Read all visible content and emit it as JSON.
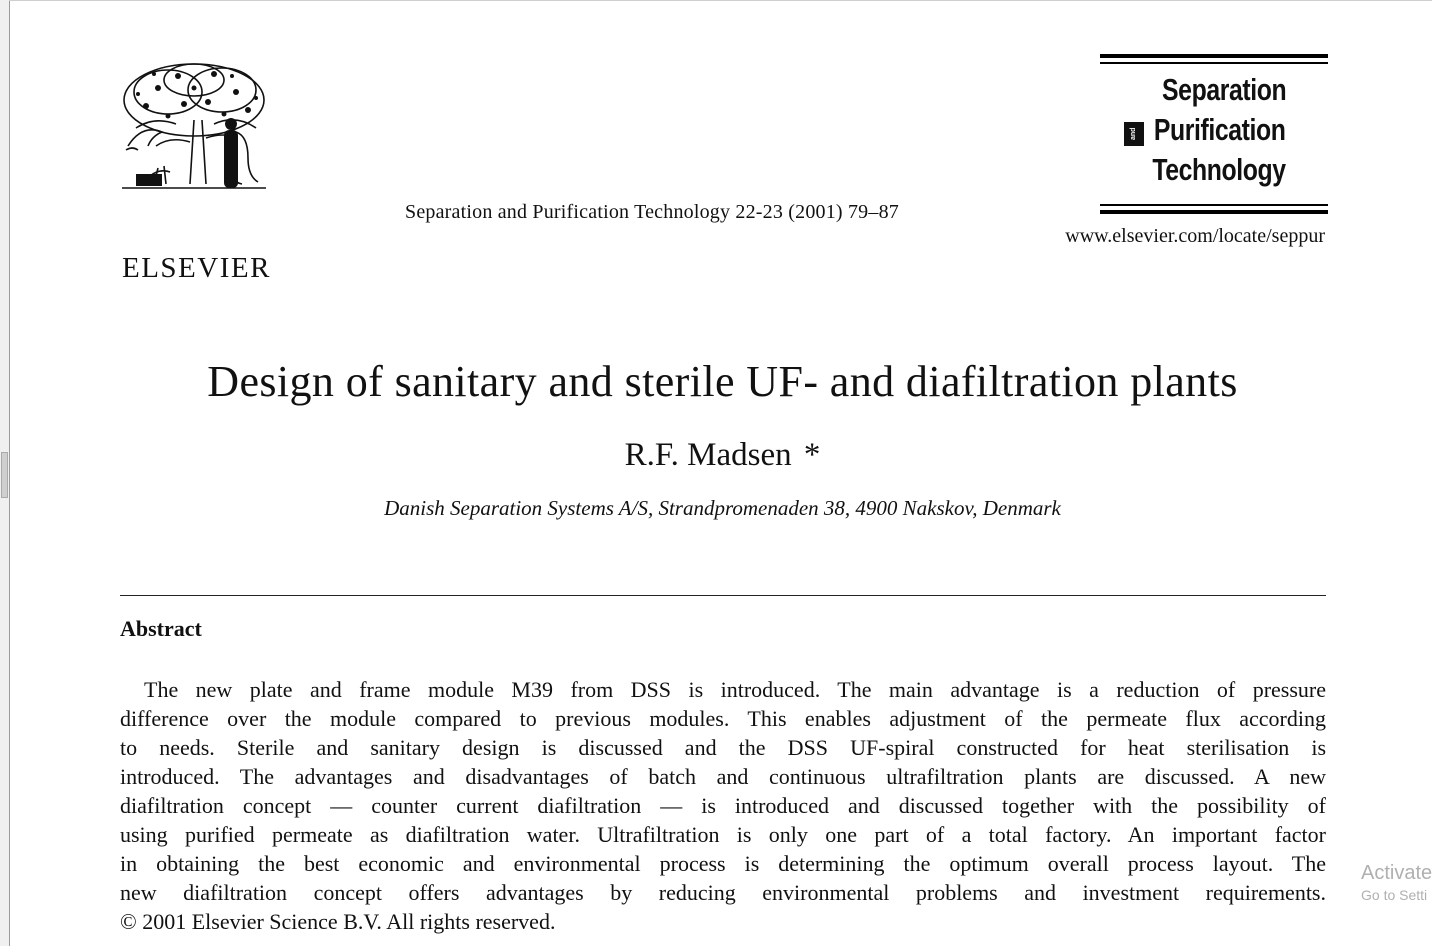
{
  "publisher": {
    "logo_text": "ELSEVIER"
  },
  "citation": "Separation and Purification Technology 22-23 (2001) 79–87",
  "journal_logo": {
    "line1": "Separation",
    "and_mark": "and",
    "line2": "Purification",
    "line3": "Technology"
  },
  "url": "www.elsevier.com/locate/seppur",
  "title": "Design of sanitary and sterile UF- and diafiltration plants",
  "author": {
    "name": "R.F. Madsen",
    "mark": "*"
  },
  "affiliation": "Danish Separation Systems A/S, Strandpromenaden 38, 4900 Nakskov, Denmark",
  "abstract": {
    "heading": "Abstract",
    "lines": [
      "The new plate and frame module M39 from DSS is introduced. The main advantage is a reduction of pressure",
      "difference over the module compared to previous modules. This enables adjustment of the permeate flux according",
      "to needs. Sterile and sanitary design is discussed and the DSS UF-spiral constructed for heat sterilisation is",
      "introduced. The advantages and disadvantages of batch and continuous ultrafiltration plants are discussed. A new",
      "diafiltration concept — counter current diafiltration — is introduced and discussed together with the possibility of",
      "using purified permeate as diafiltration water. Ultrafiltration is only one part of a total factory. An important factor",
      "in obtaining the best economic and environmental process is determining the optimum overall process layout. The",
      "new diafiltration concept offers advantages by reducing environmental problems and investment requirements.",
      "© 2001 Elsevier Science B.V. All rights reserved."
    ]
  },
  "watermark": {
    "line1": "Activate",
    "line2": "Go to Setti"
  }
}
